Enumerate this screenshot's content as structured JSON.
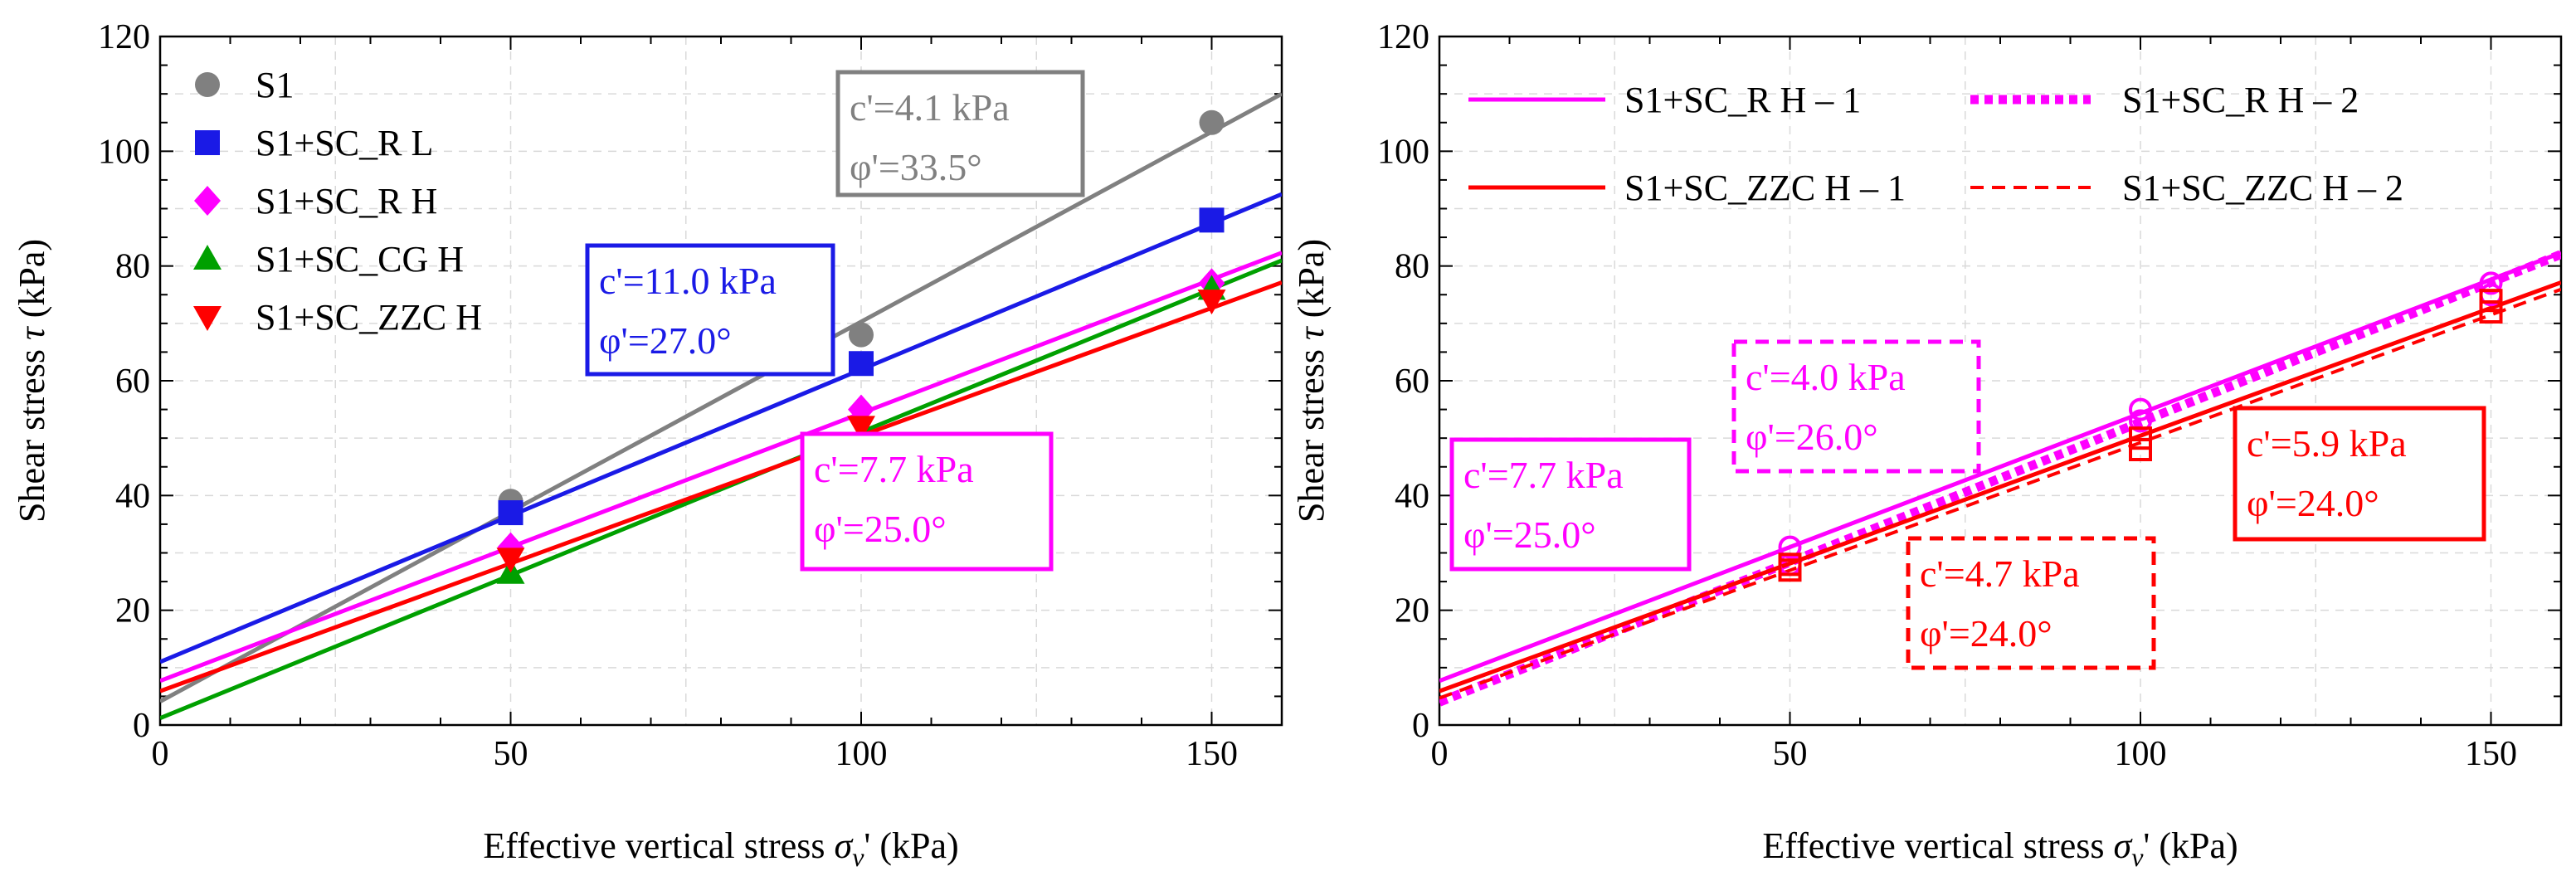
{
  "chart_data": [
    {
      "type": "scatter",
      "title": "",
      "xlabel": "Effective vertical stress σv' (kPa)",
      "xlabel_main": "Effective vertical stress ",
      "xlabel_sym": "σ",
      "xlabel_sub": "v",
      "xlabel_tail": "' (kPa)",
      "ylabel": "Shear stress τ (kPa)",
      "ylabel_main": "Shear stress ",
      "ylabel_sym": "τ",
      "ylabel_tail": " (kPa)",
      "xlim": [
        0,
        160
      ],
      "ylim": [
        0,
        120
      ],
      "xticks": [
        0,
        50,
        100,
        150
      ],
      "yticks": [
        0,
        20,
        40,
        60,
        80,
        100,
        120
      ],
      "grid": true,
      "legend_position": "top-left",
      "series": [
        {
          "name": "S1",
          "color": "#808080",
          "marker": "circle",
          "x": [
            50,
            100,
            150
          ],
          "y": [
            39,
            68,
            105
          ],
          "fit": {
            "c": 4.1,
            "phi": 33.5,
            "dash": "solid"
          }
        },
        {
          "name": "S1+SC_R L",
          "color": "#1a1ae6",
          "marker": "square",
          "x": [
            50,
            100,
            150
          ],
          "y": [
            37,
            63,
            88
          ],
          "fit": {
            "c": 11.0,
            "phi": 27.0,
            "dash": "solid"
          }
        },
        {
          "name": "S1+SC_R H",
          "color": "#ff00ff",
          "marker": "diamond",
          "x": [
            50,
            100,
            150
          ],
          "y": [
            31,
            55,
            77
          ],
          "fit": {
            "c": 7.7,
            "phi": 25.0,
            "dash": "solid"
          }
        },
        {
          "name": "S1+SC_CG H",
          "color": "#00a000",
          "marker": "triangle-up",
          "x": [
            50,
            100,
            150
          ],
          "y": [
            26.5,
            49,
            76
          ],
          "fit": {
            "c": 1.2,
            "phi": 26.5,
            "dash": "solid"
          }
        },
        {
          "name": "S1+SC_ZZC H",
          "color": "#ff0000",
          "marker": "triangle-down",
          "x": [
            50,
            100,
            150
          ],
          "y": [
            29,
            52,
            74
          ],
          "fit": {
            "c": 5.9,
            "phi": 24.0,
            "dash": "solid"
          }
        }
      ],
      "annotations": [
        {
          "c_label": "c'=4.1 kPa",
          "phi_label": "φ'=33.5°",
          "color": "#808080",
          "border": "solid"
        },
        {
          "c_label": "c'=11.0 kPa",
          "phi_label": "φ'=27.0°",
          "color": "#1a1ae6",
          "border": "solid"
        },
        {
          "c_label": "c'=7.7 kPa",
          "phi_label": "φ'=25.0°",
          "color": "#ff00ff",
          "border": "solid"
        }
      ]
    },
    {
      "type": "scatter",
      "title": "",
      "xlabel": "Effective vertical stress σv' (kPa)",
      "xlabel_main": "Effective vertical stress ",
      "xlabel_sym": "σ",
      "xlabel_sub": "v",
      "xlabel_tail": "' (kPa)",
      "ylabel": "Shear stress τ (kPa)",
      "ylabel_main": "Shear stress ",
      "ylabel_sym": "τ",
      "ylabel_tail": " (kPa)",
      "xlim": [
        0,
        160
      ],
      "ylim": [
        0,
        120
      ],
      "xticks": [
        0,
        50,
        100,
        150
      ],
      "yticks": [
        0,
        20,
        40,
        60,
        80,
        100,
        120
      ],
      "grid": true,
      "legend_position": "top",
      "series": [
        {
          "name": "S1+SC_R H – 1",
          "color": "#ff00ff",
          "marker": "circle-open",
          "x": [
            50,
            100,
            150
          ],
          "y": [
            31,
            55,
            77
          ],
          "fit": {
            "c": 7.7,
            "phi": 25.0,
            "dash": "solid"
          }
        },
        {
          "name": "S1+SC_R H – 2",
          "color": "#ff00ff",
          "marker": "circle-open",
          "x": [
            50,
            100,
            150
          ],
          "y": [
            28,
            53,
            75
          ],
          "fit": {
            "c": 4.0,
            "phi": 26.0,
            "dash": "dotted"
          }
        },
        {
          "name": "S1+SC_ZZC H – 1",
          "color": "#ff0000",
          "marker": "square-open",
          "x": [
            50,
            100,
            150
          ],
          "y": [
            28,
            50,
            74
          ],
          "fit": {
            "c": 5.9,
            "phi": 24.0,
            "dash": "solid"
          }
        },
        {
          "name": "S1+SC_ZZC H – 2",
          "color": "#ff0000",
          "marker": "square-open",
          "x": [
            50,
            100,
            150
          ],
          "y": [
            27,
            48,
            72
          ],
          "fit": {
            "c": 4.7,
            "phi": 24.0,
            "dash": "dashed"
          }
        }
      ],
      "annotations": [
        {
          "c_label": "c'=7.7 kPa",
          "phi_label": "φ'=25.0°",
          "color": "#ff00ff",
          "border": "solid"
        },
        {
          "c_label": "c'=4.0 kPa",
          "phi_label": "φ'=26.0°",
          "color": "#ff00ff",
          "border": "dashed"
        },
        {
          "c_label": "c'=4.7 kPa",
          "phi_label": "φ'=24.0°",
          "color": "#ff0000",
          "border": "dashed"
        },
        {
          "c_label": "c'=5.9 kPa",
          "phi_label": "φ'=24.0°",
          "color": "#ff0000",
          "border": "solid"
        }
      ]
    }
  ]
}
